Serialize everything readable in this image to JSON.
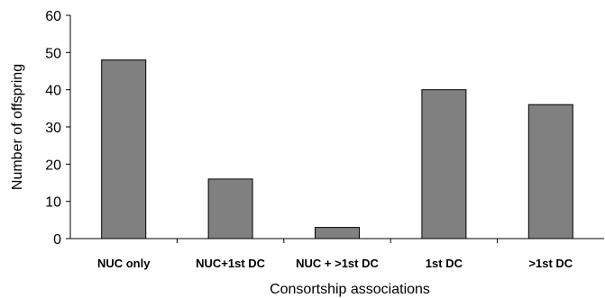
{
  "chart_data": {
    "type": "bar",
    "categories": [
      "NUC only",
      "NUC+1st DC",
      "NUC + >1st DC",
      "1st DC",
      ">1st DC"
    ],
    "values": [
      48,
      16,
      3,
      40,
      36
    ],
    "xlabel": "Consortship associations",
    "ylabel": "Number of offspring",
    "ylim": [
      0,
      60
    ],
    "yticks": [
      0,
      10,
      20,
      30,
      40,
      50,
      60
    ],
    "grid": false,
    "legend": "none",
    "bar_color": "#808080"
  }
}
